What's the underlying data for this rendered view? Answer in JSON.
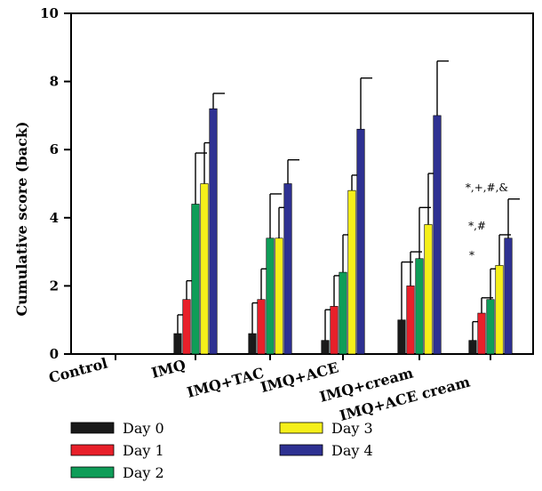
{
  "chart_data": {
    "type": "bar",
    "ylabel": "Cumulative score (back)",
    "xlabel": "",
    "ylim": [
      0,
      10
    ],
    "yticks": [
      0,
      2,
      4,
      6,
      8,
      10
    ],
    "categories": [
      "Control",
      "IMQ",
      "IMQ+TAC",
      "IMQ+ACE",
      "IMQ+cream",
      "IMQ+ACE cream"
    ],
    "series": [
      {
        "name": "Day 0",
        "color": "#1a1a1a",
        "values": [
          0,
          0.6,
          0.6,
          0.4,
          1.0,
          0.4
        ],
        "errors": [
          0,
          0.55,
          0.9,
          0.9,
          1.7,
          0.55
        ]
      },
      {
        "name": "Day 1",
        "color": "#e8202a",
        "values": [
          0,
          1.6,
          1.6,
          1.4,
          2.0,
          1.2
        ],
        "errors": [
          0,
          0.55,
          0.9,
          0.9,
          1.0,
          0.45
        ]
      },
      {
        "name": "Day 2",
        "color": "#0f9d58",
        "values": [
          0,
          4.4,
          3.4,
          2.4,
          2.8,
          1.6
        ],
        "errors": [
          0,
          1.5,
          1.3,
          1.1,
          1.5,
          0.9
        ]
      },
      {
        "name": "Day 3",
        "color": "#f5ef1a",
        "values": [
          0,
          5.0,
          3.4,
          4.8,
          3.8,
          2.6
        ],
        "errors": [
          0,
          1.2,
          0.9,
          0.45,
          1.5,
          0.9
        ]
      },
      {
        "name": "Day 4",
        "color": "#2e3192",
        "values": [
          0,
          7.2,
          5.0,
          6.6,
          7.0,
          3.4
        ],
        "errors": [
          0,
          0.45,
          0.7,
          1.5,
          1.6,
          1.15
        ]
      }
    ],
    "annotations": [
      {
        "category": "IMQ+ACE cream",
        "series": "Day 3",
        "text": "*"
      },
      {
        "category": "IMQ+ACE cream",
        "series": "Day 3",
        "text": "*,#"
      },
      {
        "category": "IMQ+ACE cream",
        "series": "Day 4",
        "text": "*,+,#,&"
      }
    ],
    "legend_position": "bottom-left",
    "grid": false
  }
}
